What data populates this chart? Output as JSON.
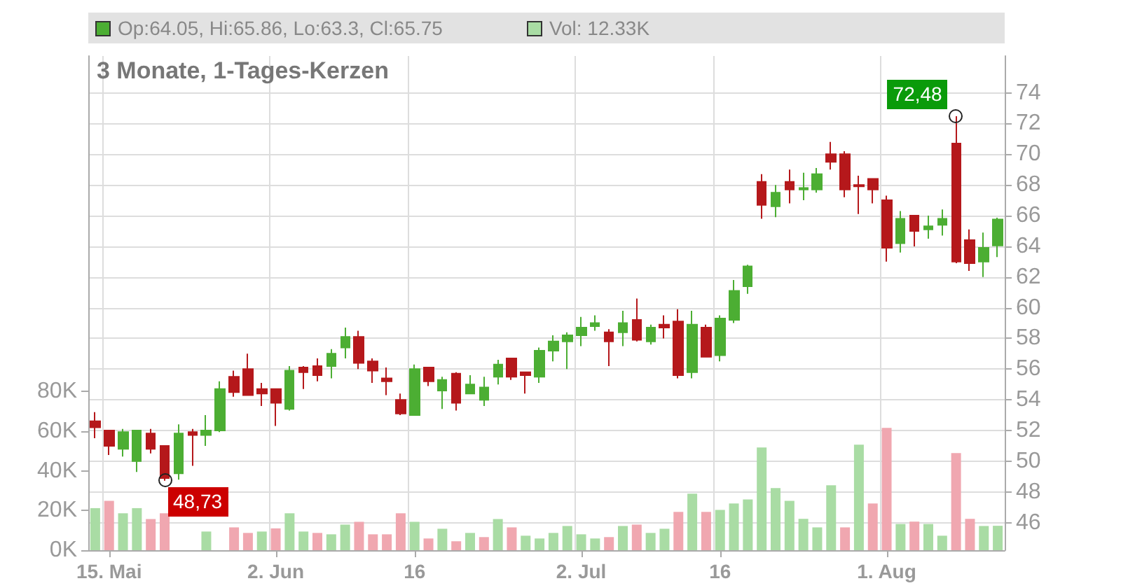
{
  "chart_data": {
    "type": "candlestick",
    "title": "3 Monate, 1-Tages-Kerzen",
    "categories": [
      null,
      "15. Mai",
      null,
      null,
      null,
      null,
      null,
      null,
      null,
      null,
      null,
      null,
      null,
      "2. Jun",
      null,
      null,
      null,
      null,
      null,
      null,
      null,
      null,
      null,
      "16",
      null,
      null,
      null,
      null,
      null,
      null,
      null,
      null,
      null,
      null,
      null,
      "2. Jul",
      null,
      null,
      null,
      null,
      null,
      null,
      null,
      null,
      null,
      "16",
      null,
      null,
      null,
      null,
      null,
      null,
      null,
      null,
      null,
      null,
      null,
      "1. Aug",
      null,
      null,
      null,
      null,
      null,
      null,
      null,
      null
    ],
    "ohlc": [
      [
        52.6,
        53.2,
        51.5,
        52.2
      ],
      [
        52.0,
        52.0,
        50.4,
        51.0
      ],
      [
        50.8,
        52.1,
        50.3,
        51.9
      ],
      [
        50.0,
        52.0,
        49.3,
        52.0
      ],
      [
        51.8,
        52.1,
        50.5,
        50.8
      ],
      [
        51.0,
        51.0,
        48.73,
        48.9
      ],
      [
        49.2,
        52.4,
        48.8,
        51.8
      ],
      [
        51.9,
        52.1,
        49.7,
        51.7
      ],
      [
        51.7,
        53.0,
        51.0,
        52.0
      ],
      [
        52.0,
        55.2,
        51.9,
        54.7
      ],
      [
        55.5,
        55.9,
        54.2,
        54.5
      ],
      [
        56.0,
        57.0,
        54.3,
        54.3
      ],
      [
        54.7,
        55.1,
        53.6,
        54.4
      ],
      [
        54.7,
        54.7,
        52.3,
        53.8
      ],
      [
        53.4,
        56.2,
        53.3,
        55.9
      ],
      [
        56.1,
        56.2,
        54.7,
        55.8
      ],
      [
        56.2,
        56.7,
        55.2,
        55.6
      ],
      [
        56.2,
        57.3,
        55.4,
        57.0
      ],
      [
        57.4,
        58.7,
        56.7,
        58.1
      ],
      [
        58.1,
        58.5,
        56.0,
        56.4
      ],
      [
        56.5,
        56.7,
        55.1,
        55.9
      ],
      [
        55.4,
        56.1,
        54.3,
        55.2
      ],
      [
        54.0,
        54.4,
        53.0,
        53.1
      ],
      [
        53.0,
        56.3,
        53.0,
        56.0
      ],
      [
        56.1,
        56.1,
        54.9,
        55.2
      ],
      [
        54.6,
        55.5,
        53.4,
        55.3
      ],
      [
        55.7,
        55.8,
        53.3,
        53.8
      ],
      [
        54.4,
        55.6,
        54.4,
        55.0
      ],
      [
        54.0,
        55.5,
        53.6,
        54.8
      ],
      [
        55.5,
        56.6,
        55.0,
        56.3
      ],
      [
        56.7,
        56.7,
        55.3,
        55.5
      ],
      [
        55.8,
        55.8,
        54.4,
        55.6
      ],
      [
        55.5,
        57.4,
        55.1,
        57.2
      ],
      [
        57.2,
        58.2,
        56.5,
        57.8
      ],
      [
        57.8,
        58.4,
        56.0,
        58.2
      ],
      [
        58.2,
        59.4,
        57.5,
        58.7
      ],
      [
        58.8,
        59.5,
        58.5,
        59.0
      ],
      [
        58.4,
        58.6,
        56.2,
        57.8
      ],
      [
        58.4,
        59.8,
        57.5,
        59.0
      ],
      [
        59.2,
        60.6,
        57.8,
        57.9
      ],
      [
        57.8,
        58.9,
        57.6,
        58.7
      ],
      [
        58.9,
        59.5,
        58.0,
        58.7
      ],
      [
        59.1,
        59.9,
        55.4,
        55.6
      ],
      [
        55.8,
        59.8,
        55.4,
        58.9
      ],
      [
        58.7,
        58.9,
        56.8,
        56.8
      ],
      [
        56.9,
        59.5,
        56.5,
        59.3
      ],
      [
        59.2,
        61.8,
        59.0,
        61.1
      ],
      [
        61.4,
        62.8,
        60.9,
        62.7
      ],
      [
        68.2,
        68.7,
        65.8,
        66.7
      ],
      [
        66.6,
        68.0,
        65.9,
        67.5
      ],
      [
        68.2,
        69.0,
        66.8,
        67.7
      ],
      [
        67.7,
        68.8,
        67.0,
        67.8
      ],
      [
        67.7,
        69.1,
        67.5,
        68.7
      ],
      [
        70.0,
        70.8,
        69.0,
        69.5
      ],
      [
        70.0,
        70.2,
        67.2,
        67.7
      ],
      [
        68.0,
        68.6,
        66.1,
        67.9
      ],
      [
        68.4,
        68.4,
        66.8,
        67.7
      ],
      [
        67.0,
        67.3,
        63.0,
        63.9
      ],
      [
        64.2,
        66.3,
        63.6,
        65.8
      ],
      [
        66.0,
        66.0,
        64.0,
        65.0
      ],
      [
        65.1,
        66.0,
        64.5,
        65.3
      ],
      [
        65.4,
        66.4,
        64.7,
        65.8
      ],
      [
        70.7,
        72.48,
        62.9,
        63.0
      ],
      [
        64.4,
        65.1,
        62.4,
        62.9
      ],
      [
        63.0,
        64.9,
        62.0,
        63.9
      ],
      [
        64.05,
        65.86,
        63.3,
        65.75
      ]
    ],
    "colors": [
      "#b5181b",
      "#b5181b",
      "#4cae33",
      "#4cae33",
      "#b5181b",
      "#b5181b",
      "#4cae33",
      "#b5181b",
      "#4cae33",
      "#4cae33",
      "#b5181b",
      "#b5181b",
      "#b5181b",
      "#b5181b",
      "#4cae33",
      "#b5181b",
      "#b5181b",
      "#4cae33",
      "#4cae33",
      "#b5181b",
      "#b5181b",
      "#b5181b",
      "#b5181b",
      "#4cae33",
      "#b5181b",
      "#4cae33",
      "#b5181b",
      "#4cae33",
      "#4cae33",
      "#4cae33",
      "#b5181b",
      "#b5181b",
      "#4cae33",
      "#4cae33",
      "#4cae33",
      "#4cae33",
      "#4cae33",
      "#b5181b",
      "#4cae33",
      "#b5181b",
      "#4cae33",
      "#b5181b",
      "#b5181b",
      "#4cae33",
      "#b5181b",
      "#4cae33",
      "#4cae33",
      "#4cae33",
      "#b5181b",
      "#4cae33",
      "#b5181b",
      "#4cae33",
      "#4cae33",
      "#b5181b",
      "#b5181b",
      "#b5181b",
      "#b5181b",
      "#b5181b",
      "#4cae33",
      "#b5181b",
      "#4cae33",
      "#4cae33",
      "#b5181b",
      "#b5181b",
      "#4cae33",
      "#4cae33"
    ],
    "series": [
      {
        "type": "bar",
        "axis": "y2",
        "values": [
          21.2,
          24.9,
          18.6,
          21.2,
          15.7,
          18.6,
          null,
          null,
          9.4,
          null,
          11.5,
          8.7,
          9.4,
          11.0,
          18.6,
          9.4,
          8.7,
          8.0,
          12.9,
          14.3,
          8.0,
          8.0,
          18.6,
          14.3,
          5.9,
          10.8,
          4.5,
          8.7,
          6.6,
          15.7,
          11.5,
          7.3,
          5.9,
          8.7,
          12.2,
          8.0,
          5.9,
          6.6,
          12.2,
          12.9,
          8.7,
          10.8,
          19.3,
          28.5,
          19.3,
          20.3,
          23.5,
          25.6,
          51.8,
          31.3,
          24.9,
          15.8,
          11.5,
          32.7,
          11.5,
          53.2,
          23.5,
          61.6,
          13.2,
          14.4,
          13.2,
          7.3,
          48.9,
          15.8,
          12.2,
          12.3
        ],
        "colors": [
          "#a9dca4",
          "#f0a7b0",
          "#a9dca4",
          "#a9dca4",
          "#f0a7b0",
          "#f0a7b0",
          "#a9dca4",
          "#a9dca4",
          "#a9dca4",
          "#a9dca4",
          "#f0a7b0",
          "#f0a7b0",
          "#a9dca4",
          "#f0a7b0",
          "#a9dca4",
          "#a9dca4",
          "#f0a7b0",
          "#a9dca4",
          "#a9dca4",
          "#f0a7b0",
          "#f0a7b0",
          "#f0a7b0",
          "#f0a7b0",
          "#a9dca4",
          "#f0a7b0",
          "#a9dca4",
          "#f0a7b0",
          "#a9dca4",
          "#f0a7b0",
          "#a9dca4",
          "#f0a7b0",
          "#a9dca4",
          "#a9dca4",
          "#a9dca4",
          "#a9dca4",
          "#a9dca4",
          "#a9dca4",
          "#f0a7b0",
          "#a9dca4",
          "#f0a7b0",
          "#a9dca4",
          "#a9dca4",
          "#f0a7b0",
          "#a9dca4",
          "#f0a7b0",
          "#a9dca4",
          "#a9dca4",
          "#a9dca4",
          "#a9dca4",
          "#a9dca4",
          "#a9dca4",
          "#a9dca4",
          "#a9dca4",
          "#a9dca4",
          "#f0a7b0",
          "#a9dca4",
          "#f0a7b0",
          "#f0a7b0",
          "#a9dca4",
          "#f0a7b0",
          "#a9dca4",
          "#a9dca4",
          "#f0a7b0",
          "#f0a7b0",
          "#a9dca4",
          "#a9dca4"
        ]
      }
    ],
    "ylim": [
      44.2,
      76.4
    ],
    "yticks": [
      46,
      48,
      50,
      52,
      54,
      56,
      58,
      60,
      62,
      64,
      66,
      68,
      70,
      72,
      74
    ],
    "y2lim": [
      0,
      249
    ],
    "y2ticks": [
      {
        "value": 0,
        "label": "0K"
      },
      {
        "value": 20,
        "label": "20K"
      },
      {
        "value": 40,
        "label": "40K"
      },
      {
        "value": 60,
        "label": "60K"
      },
      {
        "value": 80,
        "label": "80K"
      }
    ],
    "annotations": [
      "72,48",
      "48,73",
      "Op:64.05, Hi:65.86, Lo:63.3, Cl:65.75",
      "Vol: 12.33K"
    ],
    "grid": true
  }
}
